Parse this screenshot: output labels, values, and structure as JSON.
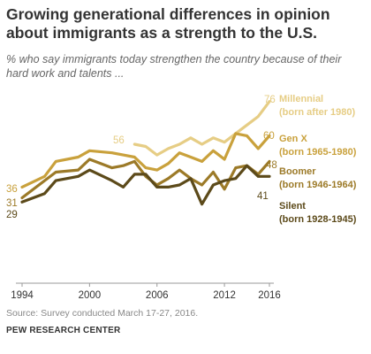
{
  "header": {
    "title": "Growing generational differences in opinion about immigrants as a strength to the U.S.",
    "subtitle": "% who say immigrants today strengthen the country because of their hard work and talents ..."
  },
  "footer": {
    "source": "Source: Survey conducted March 17-27, 2016.",
    "org": "PEW RESEARCH CENTER"
  },
  "chart_data": {
    "type": "line",
    "xlim": [
      1994,
      2016
    ],
    "ylim": [
      25,
      80
    ],
    "x_ticks": [
      "1994",
      "2000",
      "2006",
      "2012",
      "2016"
    ],
    "grid": false,
    "legend": "direct labels at right end of lines",
    "series": [
      {
        "name": "Millennial",
        "label_line2": "(born after 1980)",
        "color": "#e6cd85",
        "start_label": "56",
        "end_label": "76",
        "points": [
          [
            2004,
            56
          ],
          [
            2005,
            55
          ],
          [
            2006,
            51
          ],
          [
            2007,
            54
          ],
          [
            2008,
            56
          ],
          [
            2009,
            59
          ],
          [
            2010,
            56
          ],
          [
            2011,
            59
          ],
          [
            2012,
            57
          ],
          [
            2013,
            61
          ],
          [
            2014,
            65
          ],
          [
            2015,
            69
          ],
          [
            2016,
            76
          ]
        ]
      },
      {
        "name": "Gen X",
        "label_line2": "(born 1965-1980)",
        "color": "#c9a13c",
        "start_label": "36",
        "end_label": "60",
        "points": [
          [
            1994,
            36
          ],
          [
            1996,
            41
          ],
          [
            1997,
            48
          ],
          [
            1999,
            50
          ],
          [
            2000,
            53
          ],
          [
            2002,
            52
          ],
          [
            2003,
            51
          ],
          [
            2004,
            50
          ],
          [
            2005,
            45
          ],
          [
            2006,
            44
          ],
          [
            2007,
            47
          ],
          [
            2008,
            52
          ],
          [
            2009,
            50
          ],
          [
            2010,
            48
          ],
          [
            2011,
            53
          ],
          [
            2012,
            49
          ],
          [
            2013,
            61
          ],
          [
            2014,
            60
          ],
          [
            2015,
            54
          ],
          [
            2016,
            60
          ]
        ]
      },
      {
        "name": "Boomer",
        "label_line2": "(born 1946-1964)",
        "color": "#9c7a28",
        "start_label": "31",
        "end_label": "48",
        "points": [
          [
            1994,
            31
          ],
          [
            1996,
            39
          ],
          [
            1997,
            43
          ],
          [
            1999,
            44
          ],
          [
            2000,
            49
          ],
          [
            2002,
            45
          ],
          [
            2003,
            46
          ],
          [
            2004,
            48
          ],
          [
            2005,
            41
          ],
          [
            2006,
            37
          ],
          [
            2007,
            40
          ],
          [
            2008,
            44
          ],
          [
            2009,
            40
          ],
          [
            2010,
            37
          ],
          [
            2011,
            43
          ],
          [
            2012,
            35
          ],
          [
            2013,
            45
          ],
          [
            2014,
            46
          ],
          [
            2015,
            42
          ],
          [
            2016,
            48
          ]
        ]
      },
      {
        "name": "Silent",
        "label_line2": "(born 1928-1945)",
        "color": "#5c4a1a",
        "start_label": "29",
        "end_label": "41",
        "points": [
          [
            1994,
            29
          ],
          [
            1996,
            33
          ],
          [
            1997,
            39
          ],
          [
            1999,
            41
          ],
          [
            2000,
            44
          ],
          [
            2002,
            39
          ],
          [
            2003,
            36
          ],
          [
            2004,
            42
          ],
          [
            2005,
            42
          ],
          [
            2006,
            36
          ],
          [
            2007,
            36
          ],
          [
            2008,
            37
          ],
          [
            2009,
            40
          ],
          [
            2010,
            28
          ],
          [
            2011,
            37
          ],
          [
            2012,
            39
          ],
          [
            2013,
            40
          ],
          [
            2014,
            46
          ],
          [
            2015,
            41
          ],
          [
            2016,
            41
          ]
        ]
      }
    ]
  }
}
